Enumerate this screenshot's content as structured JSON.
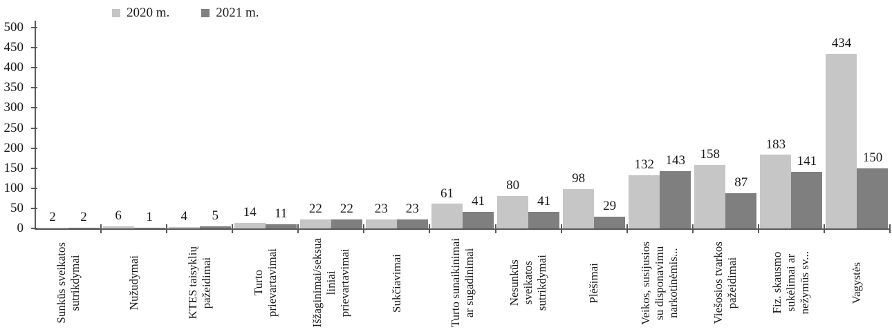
{
  "chart_data": {
    "type": "bar",
    "title": "",
    "xlabel": "",
    "ylabel": "",
    "categories": [
      "Sunkūs sveikatos\nsutrikdymai",
      "Nužudymai",
      "KTES taisyklių\npažeidimai",
      "Turto\nprievartavimai",
      "Išžaginimai/seksua\nliniai\nprievartavimai",
      "Sukčiavimai",
      "Turto sunaikinimai\nar sugadinimai",
      "Nesunkūs\nsveikatos\nsutrikdymai",
      "Plėšimai",
      "Veikos, susijusios\nsu disponavimu\nnarkotinėmis...",
      "Viešosios tvarkos\npažeidimai",
      "Fiz. skausmo\nsukėlimai ar\nnežymūs sv...",
      "Vagystės"
    ],
    "series": [
      {
        "name": "2020 m.",
        "color": "#c6c6c6",
        "values": [
          2,
          6,
          4,
          14,
          22,
          23,
          61,
          80,
          98,
          132,
          158,
          183,
          434
        ]
      },
      {
        "name": "2021 m.",
        "color": "#7f7f7f",
        "values": [
          2,
          1,
          5,
          11,
          22,
          23,
          41,
          41,
          29,
          143,
          87,
          141,
          150
        ]
      }
    ],
    "ylim": [
      0,
      500
    ],
    "yticks": [
      "0",
      "50",
      "100",
      "150",
      "200",
      "250",
      "300",
      "350",
      "400",
      "450",
      "500"
    ],
    "grid": false,
    "legend_position": "top-left",
    "value_labels": true,
    "axis_color": "#595959",
    "text_color": "#1a1a1a",
    "background_color": "#ffffff"
  }
}
